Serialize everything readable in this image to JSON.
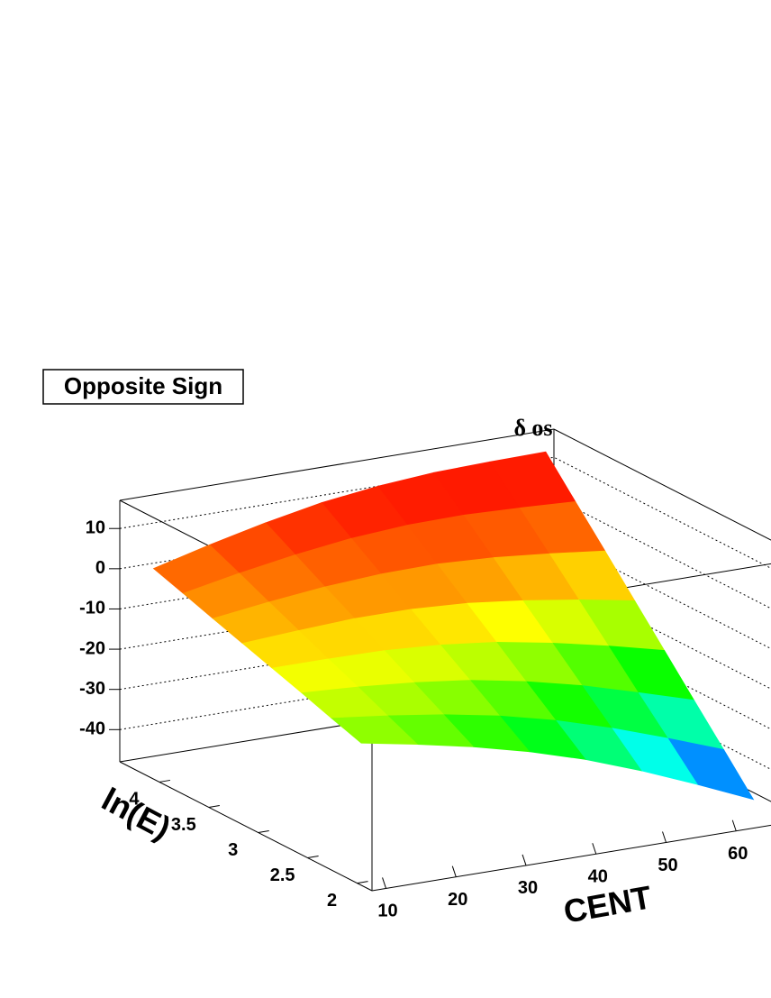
{
  "chart_data": {
    "type": "surface",
    "title": "Opposite Sign",
    "z_label": "δ os",
    "x_label": "CENT",
    "y_label": "ln(E)",
    "x": [
      10,
      18,
      26,
      34,
      42,
      50,
      58,
      66
    ],
    "y": [
      2.1,
      2.4,
      2.7,
      3,
      3.3,
      3.6,
      3.9,
      4.2
    ],
    "z": [
      [
        -15,
        -17.6,
        -20.5,
        -24,
        -28.2,
        -33.3,
        -39,
        -45
      ],
      [
        -12.6,
        -14.3,
        -16.3,
        -18.9,
        -22.3,
        -26.5,
        -31.3,
        -36.4
      ],
      [
        -10.1,
        -10.9,
        -12.1,
        -13.8,
        -16.4,
        -19.7,
        -23.7,
        -27.9
      ],
      [
        -7.7,
        -7.7,
        -7.9,
        -8.8,
        -10.4,
        -12.9,
        -15.9,
        -19.3
      ],
      [
        -5.3,
        -4.4,
        -3.7,
        -3.7,
        -4.5,
        -6.1,
        -8.2,
        -10.7
      ],
      [
        -2.9,
        -1.1,
        0.4,
        1.3,
        1.5,
        0.8,
        -0.5,
        -2.1
      ],
      [
        -0.4,
        2.3,
        4.6,
        6.4,
        7.4,
        7.6,
        7.1,
        6.4
      ],
      [
        2,
        5.6,
        8.8,
        11.5,
        13.3,
        14.4,
        14.8,
        15
      ]
    ],
    "xlim": [
      8,
      70
    ],
    "ylim": [
      1.85,
      4.4
    ],
    "zlim": [
      -48,
      17
    ],
    "xticks": [
      10,
      20,
      30,
      40,
      50,
      60
    ],
    "yticks": [
      2,
      2.5,
      3,
      3.5,
      4
    ],
    "zticks": [
      -40,
      -30,
      -20,
      -10,
      0,
      10
    ]
  }
}
